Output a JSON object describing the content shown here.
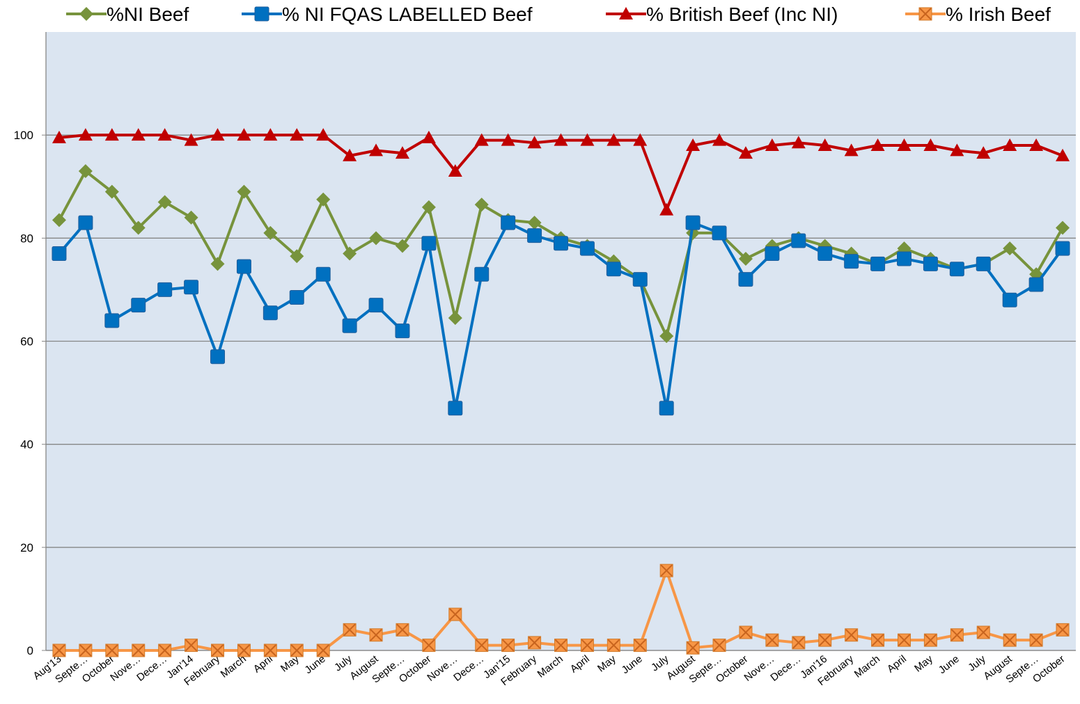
{
  "chart_data": {
    "type": "line",
    "categories": [
      "Aug'13",
      "Septe…",
      "October",
      "Nove…",
      "Dece…",
      "Jan'14",
      "February",
      "March",
      "April",
      "May",
      "June",
      "July",
      "August",
      "Septe…",
      "October",
      "Nove…",
      "Dece…",
      "Jan'15",
      "February",
      "March",
      "April",
      "May",
      "June",
      "July",
      "August",
      "Septe…",
      "October",
      "Nove…",
      "Dece…",
      "Jan'16",
      "February",
      "March",
      "April",
      "May",
      "June",
      "July",
      "August",
      "Septe…",
      "October"
    ],
    "series": [
      {
        "name": "%NI Beef",
        "color": "#77933c",
        "marker": "diamond",
        "values": [
          83.5,
          93,
          89,
          82,
          87,
          84,
          75,
          89,
          81,
          76.5,
          87.5,
          77,
          80,
          78.5,
          86,
          64.5,
          86.5,
          83.5,
          83,
          80,
          78.5,
          75.5,
          72,
          61,
          81,
          81,
          76,
          78.5,
          80,
          78.5,
          77,
          75,
          78,
          76,
          74,
          75,
          78,
          73,
          82
        ]
      },
      {
        "name": "% NI FQAS LABELLED Beef",
        "color": "#0070c0",
        "marker": "square",
        "values": [
          77,
          83,
          64,
          67,
          70,
          70.5,
          57,
          74.5,
          65.5,
          68.5,
          73,
          63,
          67,
          62,
          79,
          47,
          73,
          83,
          80.5,
          79,
          78,
          74,
          72,
          47,
          83,
          81,
          72,
          77,
          79.5,
          77,
          75.5,
          75,
          76,
          75,
          74,
          75,
          68,
          71,
          78
        ]
      },
      {
        "name": "% British Beef (Inc NI)",
        "color": "#c00000",
        "marker": "triangle",
        "values": [
          99.5,
          100,
          100,
          100,
          100,
          99,
          100,
          100,
          100,
          100,
          100,
          96,
          97,
          96.5,
          99.5,
          93,
          99,
          99,
          98.5,
          99,
          99,
          99,
          99,
          85.5,
          98,
          99,
          96.5,
          98,
          98.5,
          98,
          97,
          98,
          98,
          98,
          97,
          96.5,
          98,
          98,
          96
        ]
      },
      {
        "name": "% Irish Beef",
        "color": "#f79646",
        "marker": "xsquare",
        "values": [
          0,
          0,
          0,
          0,
          0,
          1,
          0,
          0,
          0,
          0,
          0,
          4,
          3,
          4,
          1,
          7,
          1,
          1,
          1.5,
          1,
          1,
          1,
          1,
          15.5,
          0.5,
          1,
          3.5,
          2,
          1.5,
          2,
          3,
          2,
          2,
          2,
          3,
          3.5,
          2,
          2,
          4
        ]
      }
    ],
    "ylim": [
      0,
      120
    ],
    "yticks": [
      0,
      20,
      40,
      60,
      80,
      100
    ],
    "grid": true,
    "legend": "top"
  }
}
